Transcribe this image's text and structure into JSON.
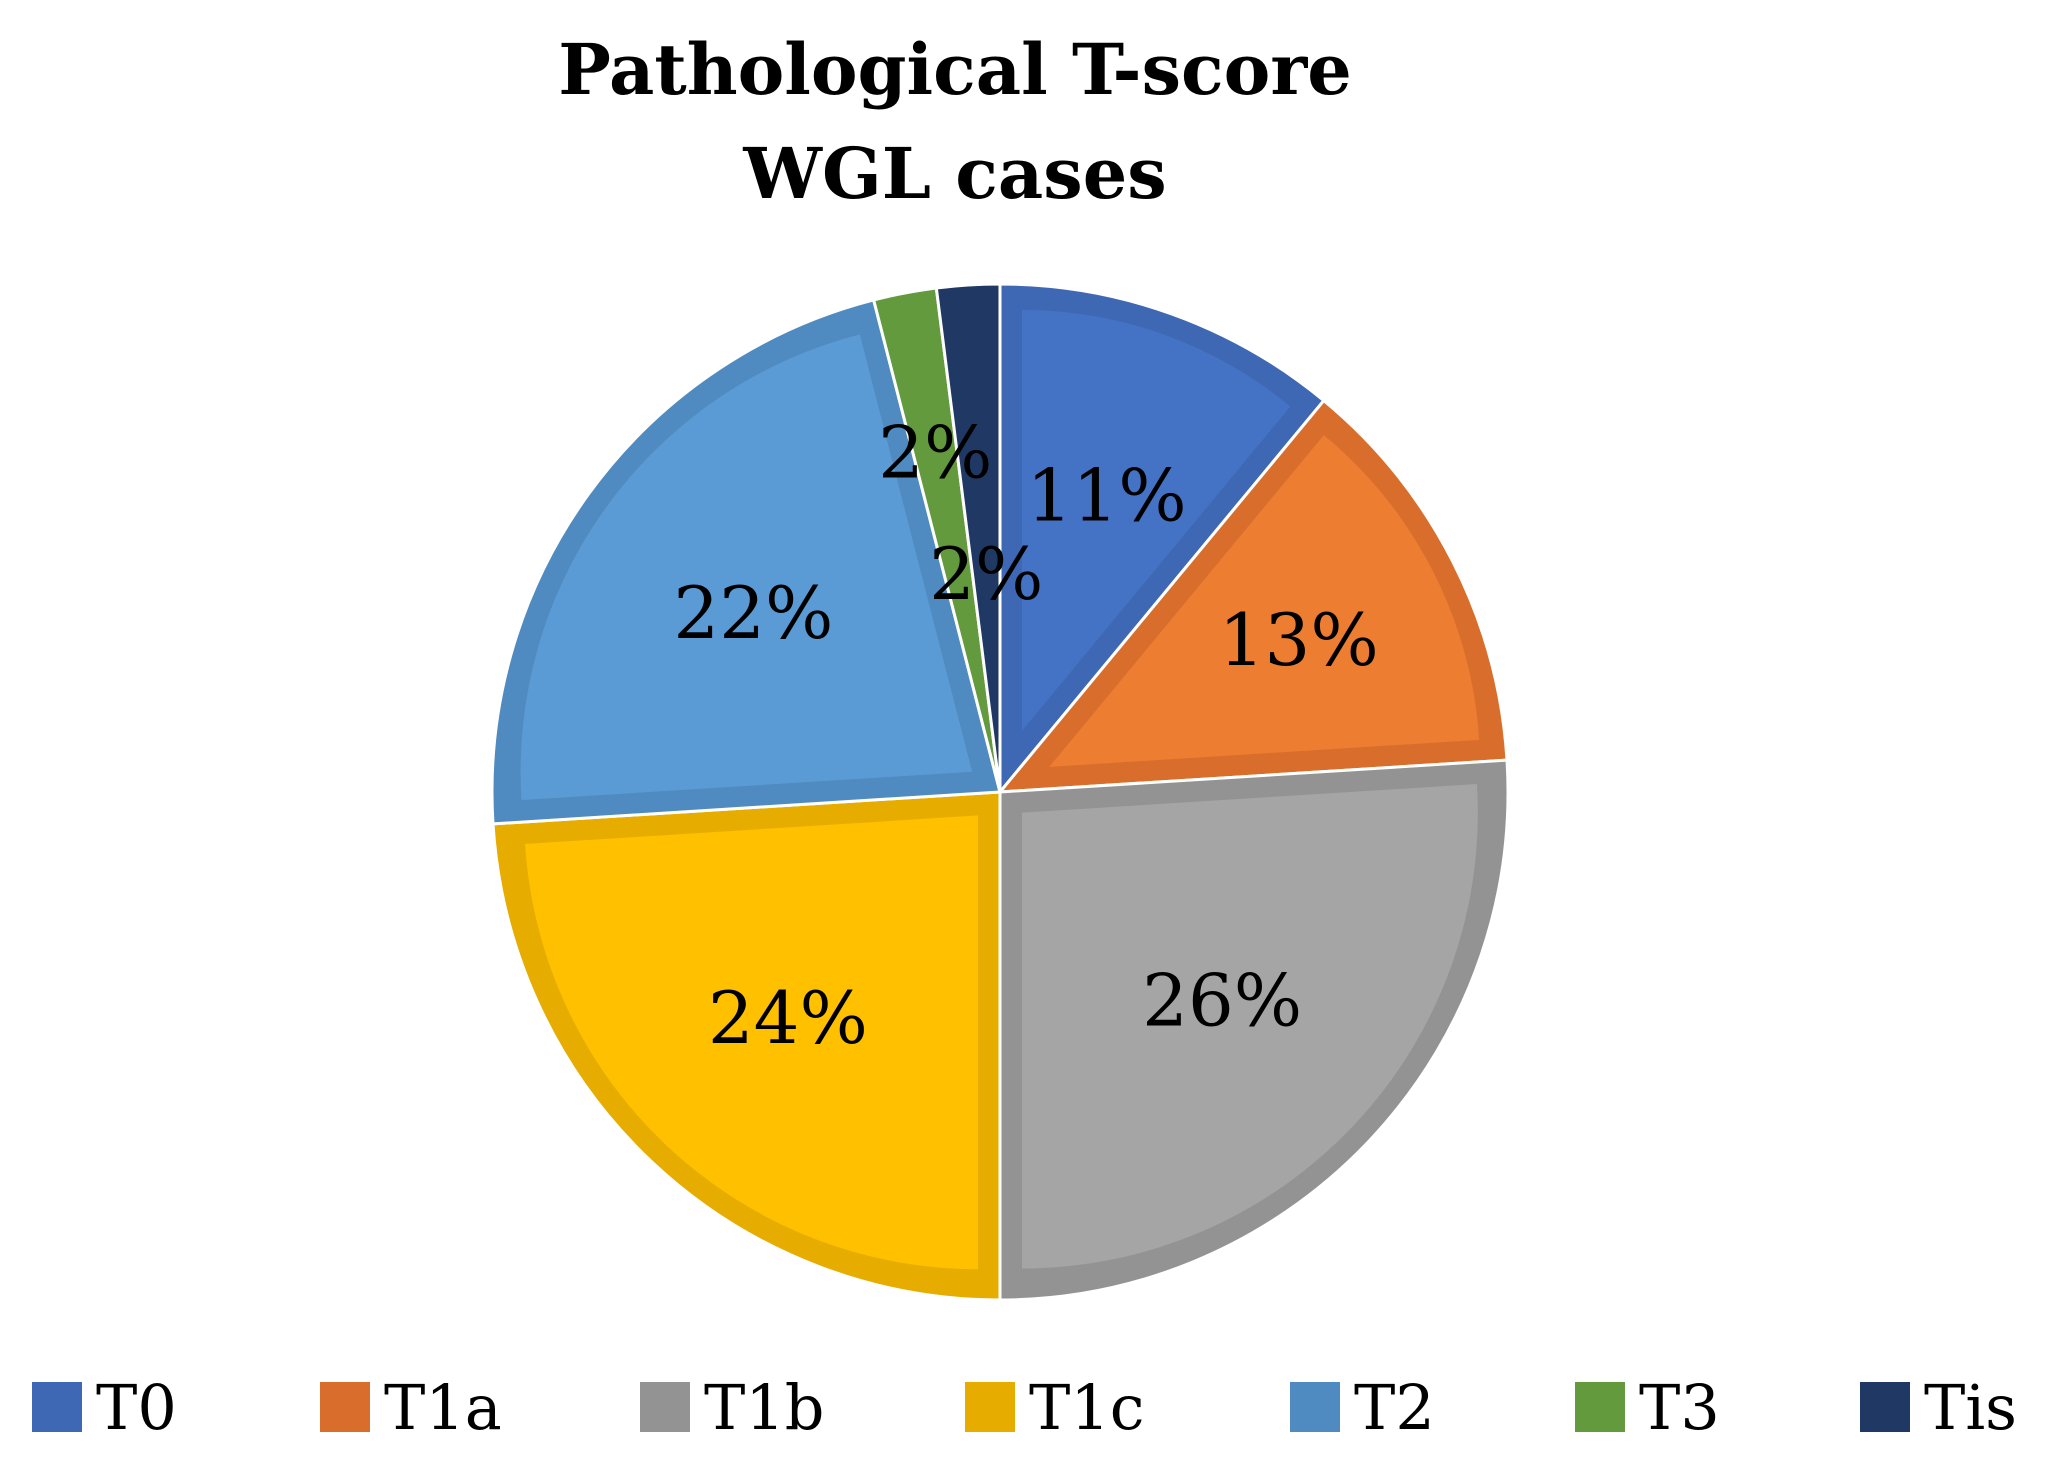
{
  "chart_data": {
    "type": "pie",
    "title": [
      "Pathological T-score",
      "WGL cases"
    ],
    "categories": [
      "T0",
      "T1a",
      "T1b",
      "T1c",
      "T2",
      "T3",
      "Tis"
    ],
    "values": [
      11,
      13,
      26,
      24,
      22,
      2,
      2
    ],
    "data_labels": [
      "11%",
      "13%",
      "26%",
      "24%",
      "22%",
      "2%",
      "2%"
    ],
    "colors": [
      "#4472C4",
      "#ED7D31",
      "#A5A5A5",
      "#FFC000",
      "#5B9BD5",
      "#70AD47",
      "#264478"
    ],
    "border_colors": [
      "#3F68B4",
      "#D96E2C",
      "#939393",
      "#E6AC00",
      "#4F8BC0",
      "#629A3D",
      "#1F3864"
    ],
    "start_angle": "12 o'clock",
    "direction": "clockwise",
    "legend_position": "bottom"
  }
}
